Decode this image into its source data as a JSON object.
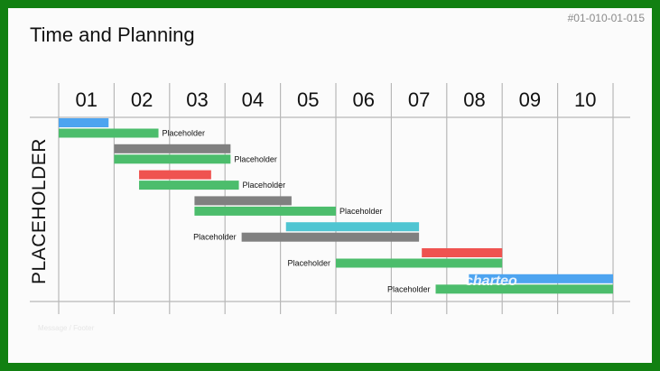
{
  "slide_id": "#01-010-01-015",
  "title": "Time and Planning",
  "side_label": "PLACEHOLDER",
  "watermark": "charteo",
  "footer_note": "Message / Footer",
  "columns": [
    "01",
    "02",
    "03",
    "04",
    "05",
    "06",
    "07",
    "08",
    "09",
    "10"
  ],
  "colors": {
    "blue": "#4da4f0",
    "green": "#4cbd6c",
    "gray": "#808080",
    "red": "#ef5350",
    "cyan": "#4fc5d2",
    "grid": "#b8b8b8",
    "frame": "#128012"
  },
  "chart_data": {
    "type": "gantt",
    "x_axis": {
      "periods": [
        "01",
        "02",
        "03",
        "04",
        "05",
        "06",
        "07",
        "08",
        "09",
        "10"
      ]
    },
    "rows": [
      {
        "top": {
          "start": 0.0,
          "end": 0.9,
          "color": "blue"
        },
        "bottom": {
          "start": 0.0,
          "end": 1.8,
          "color": "green"
        },
        "label": "Placeholder",
        "label_side": "right"
      },
      {
        "top": {
          "start": 1.0,
          "end": 3.1,
          "color": "gray"
        },
        "bottom": {
          "start": 1.0,
          "end": 3.1,
          "color": "green"
        },
        "label": "Placeholder",
        "label_side": "right"
      },
      {
        "top": {
          "start": 1.45,
          "end": 2.75,
          "color": "red"
        },
        "bottom": {
          "start": 1.45,
          "end": 3.25,
          "color": "green"
        },
        "label": "Placeholder",
        "label_side": "right"
      },
      {
        "top": {
          "start": 2.45,
          "end": 4.2,
          "color": "gray"
        },
        "bottom": {
          "start": 2.45,
          "end": 5.0,
          "color": "green"
        },
        "label": "Placeholder",
        "label_side": "right"
      },
      {
        "top": {
          "start": 4.1,
          "end": 6.5,
          "color": "cyan"
        },
        "bottom": {
          "start": 3.3,
          "end": 6.5,
          "color": "gray"
        },
        "label": "Placeholder",
        "label_side": "left"
      },
      {
        "top": {
          "start": 6.55,
          "end": 8.0,
          "color": "red"
        },
        "bottom": {
          "start": 5.0,
          "end": 8.0,
          "color": "green"
        },
        "label": "Placeholder",
        "label_side": "left"
      },
      {
        "top": {
          "start": 7.4,
          "end": 10.0,
          "color": "blue"
        },
        "bottom": {
          "start": 6.8,
          "end": 10.0,
          "color": "green"
        },
        "label": "Placeholder",
        "label_side": "left"
      }
    ]
  }
}
